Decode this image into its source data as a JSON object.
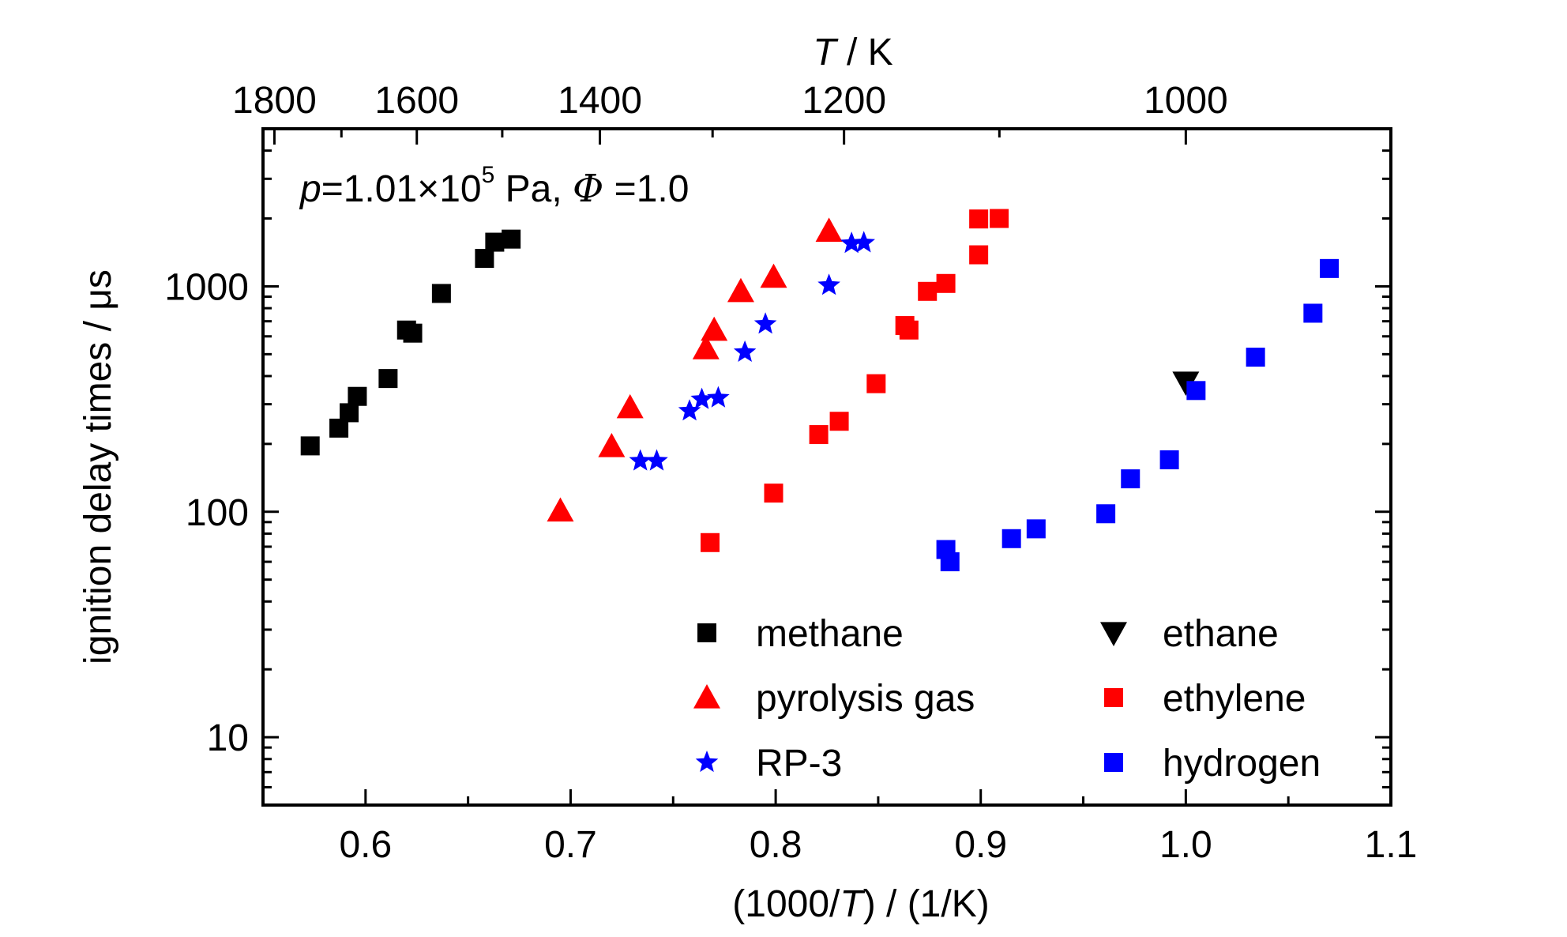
{
  "chart_data": {
    "type": "scatter",
    "xlabel_parts": [
      "(1000/",
      "T",
      ") / (1/K)"
    ],
    "ylabel": "ignition delay times / μs",
    "top_axis_label_parts": [
      "T",
      " / K"
    ],
    "annotation_parts": [
      "p",
      "=1.01×10",
      "5",
      " Pa, ",
      "Φ",
      " =1.0"
    ],
    "xlim": [
      0.55,
      1.1
    ],
    "ylim": [
      5,
      5000
    ],
    "y_scale": "log",
    "x_ticks": [
      "0.6",
      "0.7",
      "0.8",
      "0.9",
      "1.0",
      "1.1"
    ],
    "y_ticks": [
      "10",
      "100",
      "1000"
    ],
    "top_ticks": [
      "1800",
      "1600",
      "1400",
      "1200",
      "1000"
    ],
    "legend_position": "bottom-right",
    "series": [
      {
        "name": "methane",
        "marker": "square",
        "color": "#000000",
        "points": [
          [
            0.573,
            196
          ],
          [
            0.587,
            235
          ],
          [
            0.592,
            275
          ],
          [
            0.596,
            325
          ],
          [
            0.611,
            390
          ],
          [
            0.62,
            640
          ],
          [
            0.623,
            620
          ],
          [
            0.637,
            930
          ],
          [
            0.658,
            1330
          ],
          [
            0.663,
            1570
          ],
          [
            0.671,
            1620
          ]
        ]
      },
      {
        "name": "pyrolysis  gas",
        "marker": "triangle-up",
        "color": "#ff0000",
        "points": [
          [
            0.695,
            101
          ],
          [
            0.72,
            195
          ],
          [
            0.729,
            290
          ],
          [
            0.766,
            530
          ],
          [
            0.77,
            640
          ],
          [
            0.783,
            950
          ],
          [
            0.799,
            1100
          ],
          [
            0.826,
            1760
          ]
        ]
      },
      {
        "name": "RP-3",
        "marker": "star",
        "color": "#0000ff",
        "points": [
          [
            0.734,
            168
          ],
          [
            0.742,
            168
          ],
          [
            0.758,
            280
          ],
          [
            0.764,
            315
          ],
          [
            0.772,
            320
          ],
          [
            0.785,
            510
          ],
          [
            0.795,
            680
          ],
          [
            0.826,
            1010
          ],
          [
            0.837,
            1550
          ],
          [
            0.843,
            1560
          ]
        ]
      },
      {
        "name": "ethane",
        "marker": "triangle-down",
        "color": "#000000",
        "points": [
          [
            1.0,
            375
          ]
        ]
      },
      {
        "name": "ethylene",
        "marker": "square",
        "color": "#ff0000",
        "points": [
          [
            0.768,
            73
          ],
          [
            0.799,
            121
          ],
          [
            0.821,
            220
          ],
          [
            0.831,
            252
          ],
          [
            0.849,
            370
          ],
          [
            0.863,
            670
          ],
          [
            0.865,
            640
          ],
          [
            0.874,
            950
          ],
          [
            0.883,
            1030
          ],
          [
            0.899,
            1380
          ],
          [
            0.899,
            1990
          ],
          [
            0.909,
            2000
          ]
        ]
      },
      {
        "name": "hydrogen",
        "marker": "square",
        "color": "#0000ff",
        "points": [
          [
            0.883,
            68
          ],
          [
            0.885,
            60
          ],
          [
            0.915,
            76
          ],
          [
            0.927,
            84
          ],
          [
            0.961,
            98
          ],
          [
            0.973,
            140
          ],
          [
            0.992,
            170
          ],
          [
            1.005,
            345
          ],
          [
            1.034,
            485
          ],
          [
            1.062,
            760
          ],
          [
            1.07,
            1200
          ]
        ]
      }
    ]
  }
}
